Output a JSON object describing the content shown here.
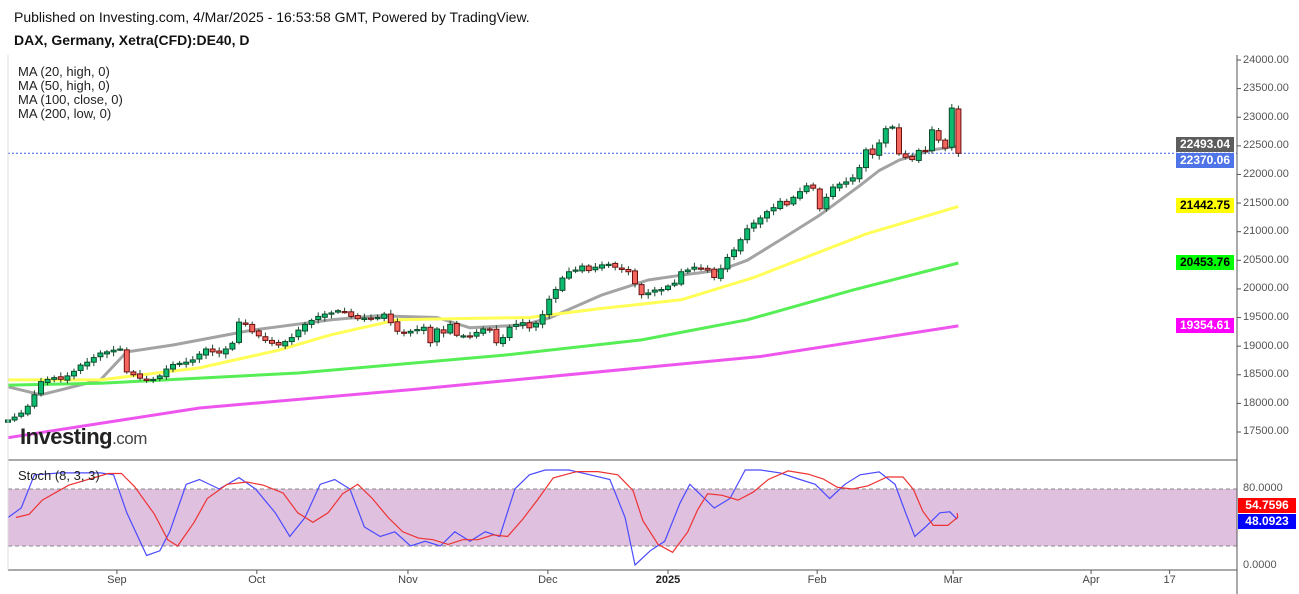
{
  "header": {
    "published": "Published on Investing.com, 4/Mar/2025 - 16:53:58 GMT, Powered by TradingView.",
    "symbol": "DAX, Germany, Xetra(CFD):DE40, D"
  },
  "legend": [
    "MA (20, high, 0)",
    "MA (50, high, 0)",
    "MA (100, close, 0)",
    "MA (200, low, 0)"
  ],
  "logo": {
    "main": "Investing",
    "suffix": ".com"
  },
  "colors": {
    "up": "#0dbb70",
    "down": "#f4665e",
    "ma20": "#a3a3a3",
    "ma50": "#ffff55",
    "ma100": "#55ee55",
    "ma200": "#ee55ee",
    "stochK": "#4a4aff",
    "stochD": "#ee3333",
    "stochBand": "#dfc0df"
  },
  "price_labels": [
    {
      "value": "22493.04",
      "bg": "#5d5d5d",
      "fg": "#ffffff"
    },
    {
      "value": "22370.06",
      "bg": "#4e74e8",
      "fg": "#ffffff"
    },
    {
      "value": "21442.75",
      "bg": "#ffff00",
      "fg": "#000000"
    },
    {
      "value": "20453.76",
      "bg": "#00ff00",
      "fg": "#000000"
    },
    {
      "value": "19354.61",
      "bg": "#ff00ff",
      "fg": "#ffffff"
    }
  ],
  "stoch": {
    "title": "Stoch (8, 3, 3)",
    "ticks": [
      "80.0000",
      "0.0000"
    ],
    "labels": [
      {
        "value": "54.7596",
        "bg": "#ff0000",
        "fg": "#ffffff"
      },
      {
        "value": "48.0923",
        "bg": "#0000ff",
        "fg": "#ffffff"
      }
    ]
  },
  "chart_data": {
    "type": "candlestick",
    "title": "DAX, Germany, Xetra(CFD):DE40, D",
    "ylim": [
      17300,
      24100
    ],
    "y_ticks": [
      "24000.00",
      "23500.00",
      "23000.00",
      "22500.00",
      "22000.00",
      "21500.00",
      "21000.00",
      "20500.00",
      "20000.00",
      "19500.00",
      "19000.00",
      "18500.00",
      "18000.00",
      "17500.00"
    ],
    "x_ticks": [
      {
        "label": "Sep",
        "index": 16.5
      },
      {
        "label": "Oct",
        "index": 37.7
      },
      {
        "label": "Nov",
        "index": 60.6
      },
      {
        "label": "Dec",
        "index": 81.8
      },
      {
        "label": "2025",
        "index": 100,
        "bold": true
      },
      {
        "label": "Feb",
        "index": 122.6
      },
      {
        "label": "Mar",
        "index": 143.2
      },
      {
        "label": "Apr",
        "index": 164.1
      },
      {
        "label": "17",
        "index": 176
      }
    ],
    "closes": [
      17710,
      17760,
      17830,
      17950,
      18150,
      18380,
      18420,
      18450,
      18420,
      18480,
      18560,
      18670,
      18720,
      18800,
      18880,
      18900,
      18930,
      18950,
      18550,
      18500,
      18440,
      18400,
      18420,
      18480,
      18600,
      18680,
      18700,
      18720,
      18760,
      18860,
      18950,
      18900,
      18880,
      18950,
      19050,
      19420,
      19380,
      19250,
      19180,
      19100,
      19050,
      19020,
      19080,
      19150,
      19280,
      19380,
      19450,
      19520,
      19560,
      19580,
      19620,
      19600,
      19520,
      19480,
      19490,
      19480,
      19500,
      19560,
      19410,
      19260,
      19230,
      19260,
      19290,
      19330,
      19060,
      19300,
      19230,
      19380,
      19190,
      19180,
      19160,
      19240,
      19300,
      19280,
      19060,
      19150,
      19330,
      19380,
      19410,
      19320,
      19400,
      19550,
      19820,
      19990,
      20190,
      20300,
      20330,
      20400,
      20320,
      20380,
      20420,
      20430,
      20380,
      20340,
      20300,
      20090,
      19900,
      19930,
      19980,
      19990,
      20050,
      20100,
      20300,
      20330,
      20380,
      20360,
      20330,
      20200,
      20350,
      20550,
      20680,
      20860,
      21050,
      21150,
      21240,
      21350,
      21420,
      21530,
      21470,
      21600,
      21700,
      21800,
      21760,
      21400,
      21600,
      21780,
      21830,
      21870,
      21940,
      22120,
      22430,
      22350,
      22550,
      22800,
      22830,
      22360,
      22300,
      22260,
      22420,
      22400,
      22780,
      22600,
      22460,
      23160,
      22370
    ],
    "last_price": 22370.06,
    "series": [
      {
        "name": "MA (20, high, 0)",
        "points": [
          [
            0,
            18290
          ],
          [
            5,
            18150
          ],
          [
            14,
            18410
          ],
          [
            18,
            18900
          ],
          [
            25,
            19020
          ],
          [
            37,
            19280
          ],
          [
            49,
            19460
          ],
          [
            56,
            19530
          ],
          [
            65,
            19500
          ],
          [
            70,
            19320
          ],
          [
            78,
            19370
          ],
          [
            82,
            19490
          ],
          [
            90,
            19895
          ],
          [
            97,
            20155
          ],
          [
            102,
            20240
          ],
          [
            108,
            20330
          ],
          [
            112,
            20500
          ],
          [
            117,
            20855
          ],
          [
            123,
            21290
          ],
          [
            129,
            21800
          ],
          [
            132,
            22070
          ],
          [
            135,
            22250
          ],
          [
            140,
            22430
          ],
          [
            144,
            22493
          ]
        ]
      },
      {
        "name": "MA (50, high, 0)",
        "points": [
          [
            0,
            18410
          ],
          [
            14,
            18410
          ],
          [
            29,
            18620
          ],
          [
            41,
            18930
          ],
          [
            49,
            19200
          ],
          [
            59,
            19460
          ],
          [
            67,
            19480
          ],
          [
            79,
            19500
          ],
          [
            90,
            19660
          ],
          [
            102,
            19810
          ],
          [
            113,
            20200
          ],
          [
            130,
            20960
          ],
          [
            144,
            21442.75
          ]
        ]
      },
      {
        "name": "MA (100, close, 0)",
        "points": [
          [
            0,
            18320
          ],
          [
            14,
            18350
          ],
          [
            44,
            18530
          ],
          [
            75,
            18840
          ],
          [
            96,
            19110
          ],
          [
            112,
            19460
          ],
          [
            128,
            19980
          ],
          [
            144,
            20453.76
          ]
        ]
      },
      {
        "name": "MA (200, low, 0)",
        "points": [
          [
            0,
            17400
          ],
          [
            29,
            17920
          ],
          [
            62,
            18250
          ],
          [
            114,
            18820
          ],
          [
            144,
            19354.61
          ]
        ]
      }
    ],
    "stochastic": {
      "name": "Stoch (8, 3, 3)",
      "ylim": [
        0,
        100
      ],
      "bands": [
        20,
        80
      ],
      "k_points": [
        [
          0,
          50
        ],
        [
          2,
          60
        ],
        [
          4,
          95
        ],
        [
          8,
          97
        ],
        [
          14,
          97
        ],
        [
          16,
          95
        ],
        [
          18,
          55
        ],
        [
          21,
          10
        ],
        [
          23,
          15
        ],
        [
          24.5,
          35
        ],
        [
          27,
          85
        ],
        [
          29,
          90
        ],
        [
          32,
          80
        ],
        [
          35,
          92
        ],
        [
          37.5,
          80
        ],
        [
          40.5,
          55
        ],
        [
          42.7,
          30
        ],
        [
          45,
          50
        ],
        [
          47.3,
          85
        ],
        [
          49.5,
          90
        ],
        [
          51.8,
          80
        ],
        [
          54,
          40
        ],
        [
          56.4,
          30
        ],
        [
          58.6,
          35
        ],
        [
          61,
          20
        ],
        [
          63.2,
          25
        ],
        [
          65.5,
          20
        ],
        [
          67.7,
          35
        ],
        [
          70,
          25
        ],
        [
          72.3,
          35
        ],
        [
          74.5,
          30
        ],
        [
          76.8,
          80
        ],
        [
          79,
          95
        ],
        [
          81.4,
          100
        ],
        [
          85,
          100
        ],
        [
          88.2,
          95
        ],
        [
          91.2,
          90
        ],
        [
          93.5,
          50
        ],
        [
          95,
          0
        ],
        [
          97.3,
          15
        ],
        [
          99.5,
          25
        ],
        [
          101.8,
          65
        ],
        [
          103.3,
          85
        ],
        [
          104.8,
          75
        ],
        [
          107,
          60
        ],
        [
          109.4,
          70
        ],
        [
          111.7,
          100
        ],
        [
          114,
          100
        ],
        [
          117,
          97
        ],
        [
          120,
          90
        ],
        [
          122.3,
          85
        ],
        [
          124.5,
          70
        ],
        [
          126.8,
          85
        ],
        [
          129.1,
          95
        ],
        [
          132,
          98
        ],
        [
          134.4,
          85
        ],
        [
          136,
          55
        ],
        [
          137.4,
          30
        ],
        [
          139,
          40
        ],
        [
          141.2,
          55
        ],
        [
          142.7,
          56
        ],
        [
          143.8,
          48.09
        ]
      ],
      "k_last": 48.0923,
      "d_last": 54.7596
    }
  }
}
